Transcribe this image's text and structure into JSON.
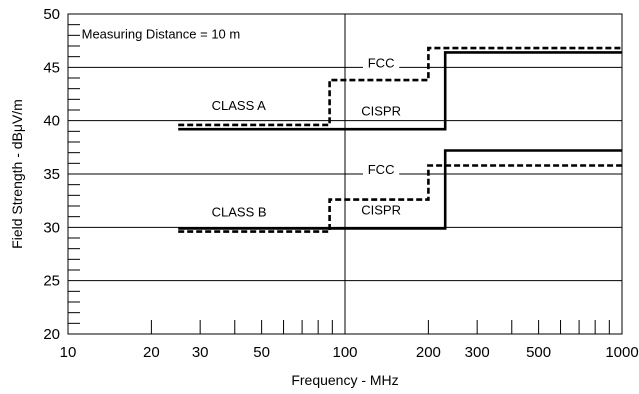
{
  "chart_data": {
    "type": "line",
    "title": "",
    "xlabel": "Frequency - MHz",
    "ylabel": "Field Strength - dBμV/m",
    "xscale": "log",
    "xlim": [
      10,
      1000
    ],
    "ylim": [
      20,
      50
    ],
    "grid": "major",
    "x_tick_labels": [
      "10",
      "20",
      "30",
      "50",
      "100",
      "200",
      "300",
      "500",
      "1000"
    ],
    "x_tick_values": [
      10,
      20,
      30,
      50,
      100,
      200,
      300,
      500,
      1000
    ],
    "y_tick_labels": [
      "20",
      "25",
      "30",
      "35",
      "40",
      "45",
      "50"
    ],
    "y_tick_values": [
      20,
      25,
      30,
      35,
      40,
      45,
      50
    ],
    "series": [
      {
        "group": "CLASS A",
        "standard": "CISPR",
        "style": "solid",
        "x": [
          25,
          230,
          230,
          1000
        ],
        "y": [
          39.2,
          39.2,
          46.4,
          46.4
        ]
      },
      {
        "group": "CLASS A",
        "standard": "FCC",
        "style": "dashed",
        "x": [
          25,
          88,
          88,
          200,
          200,
          1000
        ],
        "y": [
          39.6,
          39.6,
          43.8,
          43.8,
          46.8,
          46.8
        ]
      },
      {
        "group": "CLASS B",
        "standard": "CISPR",
        "style": "solid",
        "x": [
          25,
          230,
          230,
          1000
        ],
        "y": [
          29.9,
          29.9,
          37.2,
          37.2
        ]
      },
      {
        "group": "CLASS B",
        "standard": "FCC",
        "style": "dashed",
        "x": [
          25,
          88,
          88,
          200,
          200,
          1000
        ],
        "y": [
          29.6,
          29.6,
          32.6,
          32.6,
          35.8,
          35.8
        ]
      }
    ],
    "annotations": {
      "distance": {
        "text": "Measuring Distance = 10 m",
        "x": 11.2,
        "y": 47.7
      },
      "class_a": {
        "text": "CLASS A",
        "x": 33,
        "y": 41.0
      },
      "class_b": {
        "text": "CLASS B",
        "x": 33,
        "y": 31.0
      },
      "fcc_a": {
        "text": "FCC",
        "x": 135,
        "y": 45.0
      },
      "cispr_a": {
        "text": "CISPR",
        "x": 135,
        "y": 40.5
      },
      "fcc_b": {
        "text": "FCC",
        "x": 135,
        "y": 35.0
      },
      "cispr_b": {
        "text": "CISPR",
        "x": 135,
        "y": 31.2
      }
    }
  }
}
